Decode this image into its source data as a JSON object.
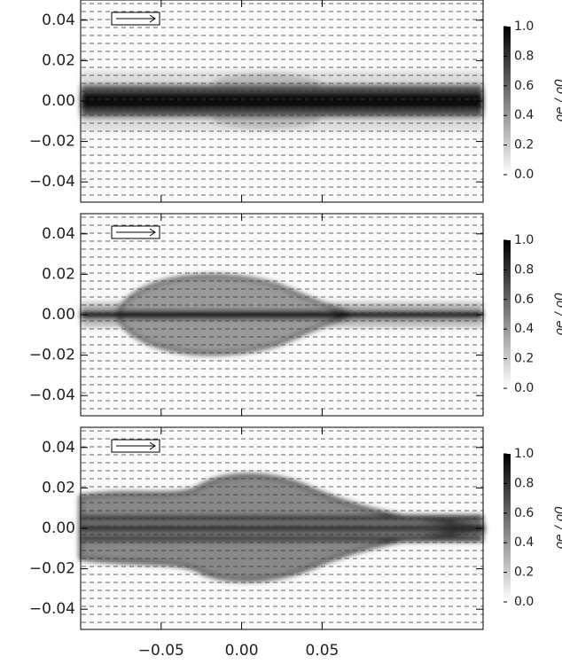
{
  "chart_data": [
    {
      "type": "density-map",
      "xlim": [
        -0.1,
        0.15
      ],
      "ylim": [
        -0.05,
        0.05
      ],
      "xticks": [
        {
          "value": -0.05,
          "label": "−0.05"
        },
        {
          "value": 0,
          "label": "0.00"
        },
        {
          "value": 0.05,
          "label": "0.05"
        }
      ],
      "yticks": [
        {
          "value": 0.04,
          "label": "0.04"
        },
        {
          "value": 0.02,
          "label": "0.02"
        },
        {
          "value": 0,
          "label": "0.00"
        },
        {
          "value": -0.02,
          "label": "−0.02"
        },
        {
          "value": -0.04,
          "label": "−0.04"
        }
      ],
      "show_xtick_labels": false,
      "colorbar": {
        "label": "ρe / ρ0",
        "lim": [
          0,
          1
        ],
        "ticks": [
          {
            "value": 1,
            "label": "1.0"
          },
          0.8,
          0.6,
          0.4,
          0.2,
          {
            "value": 0,
            "label": "0.0"
          }
        ]
      }
    },
    {
      "type": "density-map",
      "xlim": [
        -0.1,
        0.15
      ],
      "ylim": [
        -0.05,
        0.05
      ],
      "xticks": [
        {
          "value": -0.05,
          "label": "−0.05"
        },
        {
          "value": 0,
          "label": "0.00"
        },
        {
          "value": 0.05,
          "label": "0.05"
        }
      ],
      "yticks": [
        {
          "value": 0.04,
          "label": "0.04"
        },
        {
          "value": 0.02,
          "label": "0.02"
        },
        {
          "value": 0,
          "label": "0.00"
        },
        {
          "value": -0.02,
          "label": "−0.02"
        },
        {
          "value": -0.04,
          "label": "−0.04"
        }
      ],
      "show_xtick_labels": false,
      "colorbar": {
        "label": "ρe / ρ0",
        "lim": [
          0,
          1
        ],
        "ticks": [
          {
            "value": 1,
            "label": "1.0"
          },
          0.8,
          0.6,
          0.4,
          0.2,
          {
            "value": 0,
            "label": "0.0"
          }
        ]
      }
    },
    {
      "type": "density-map",
      "xlim": [
        -0.1,
        0.15
      ],
      "ylim": [
        -0.05,
        0.05
      ],
      "xticks": [
        {
          "value": -0.05,
          "label": "−0.05"
        },
        {
          "value": 0,
          "label": "0.00"
        },
        {
          "value": 0.05,
          "label": "0.05"
        }
      ],
      "yticks": [
        {
          "value": 0.04,
          "label": "0.04"
        },
        {
          "value": 0.02,
          "label": "0.02"
        },
        {
          "value": 0,
          "label": "0.00"
        },
        {
          "value": -0.02,
          "label": "−0.02"
        },
        {
          "value": -0.04,
          "label": "−0.04"
        }
      ],
      "show_xtick_labels": true,
      "colorbar": {
        "label": "ρe / ρ0",
        "lim": [
          0,
          1
        ],
        "ticks": [
          {
            "value": 1,
            "label": "1.0"
          },
          0.8,
          0.6,
          0.4,
          0.2,
          {
            "value": 0,
            "label": "0.0"
          }
        ]
      }
    }
  ]
}
